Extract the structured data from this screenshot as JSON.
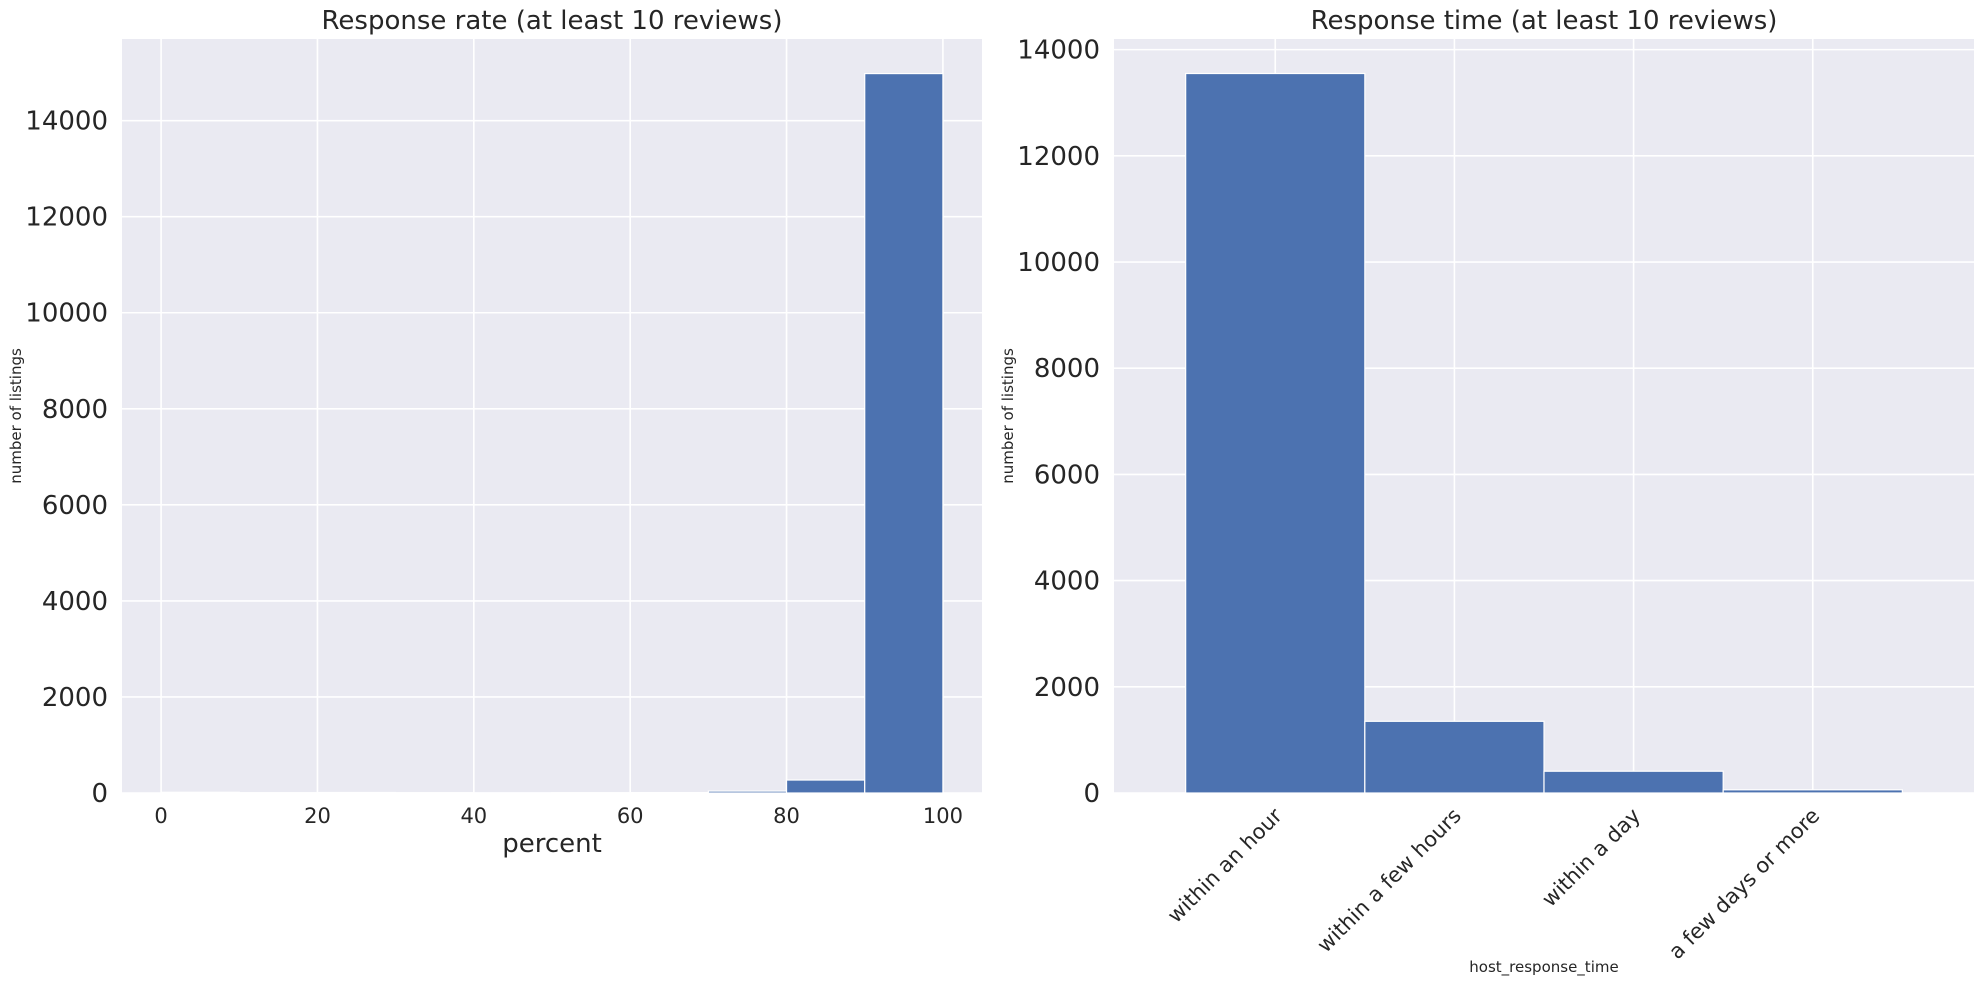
{
  "chart_data": [
    {
      "type": "bar",
      "title": "Response rate (at least 10 reviews)",
      "xlabel": "percent",
      "ylabel": "number of listings",
      "bin_edges": [
        0,
        10,
        20,
        30,
        40,
        50,
        60,
        70,
        80,
        90,
        100
      ],
      "values": [
        15,
        5,
        10,
        5,
        3,
        5,
        8,
        40,
        270,
        14980
      ],
      "xlim": [
        -5,
        105
      ],
      "ylim": [
        0,
        15700
      ],
      "xticks": [
        0,
        20,
        40,
        60,
        80,
        100
      ],
      "xtick_labels": [
        "0",
        "20",
        "40",
        "60",
        "80",
        "100"
      ],
      "yticks": [
        0,
        2000,
        4000,
        6000,
        8000,
        10000,
        12000,
        14000
      ],
      "ytick_labels": [
        "0",
        "2000",
        "4000",
        "6000",
        "8000",
        "10000",
        "12000",
        "14000"
      ],
      "grid": true,
      "color": "#4c72b0",
      "background": "#eaeaf2"
    },
    {
      "type": "bar",
      "title": "Response time (at least 10 reviews)",
      "xlabel": "host_response_time",
      "ylabel": "number of listings",
      "categories": [
        "within an hour",
        "within a few hours",
        "within a day",
        "a few days or more"
      ],
      "values": [
        13550,
        1350,
        410,
        60
      ],
      "ylim": [
        0,
        14200
      ],
      "yticks": [
        0,
        2000,
        4000,
        6000,
        8000,
        10000,
        12000,
        14000
      ],
      "ytick_labels": [
        "0",
        "2000",
        "4000",
        "6000",
        "8000",
        "10000",
        "12000",
        "14000"
      ],
      "grid": true,
      "color": "#4c72b0",
      "background": "#eaeaf2"
    }
  ]
}
